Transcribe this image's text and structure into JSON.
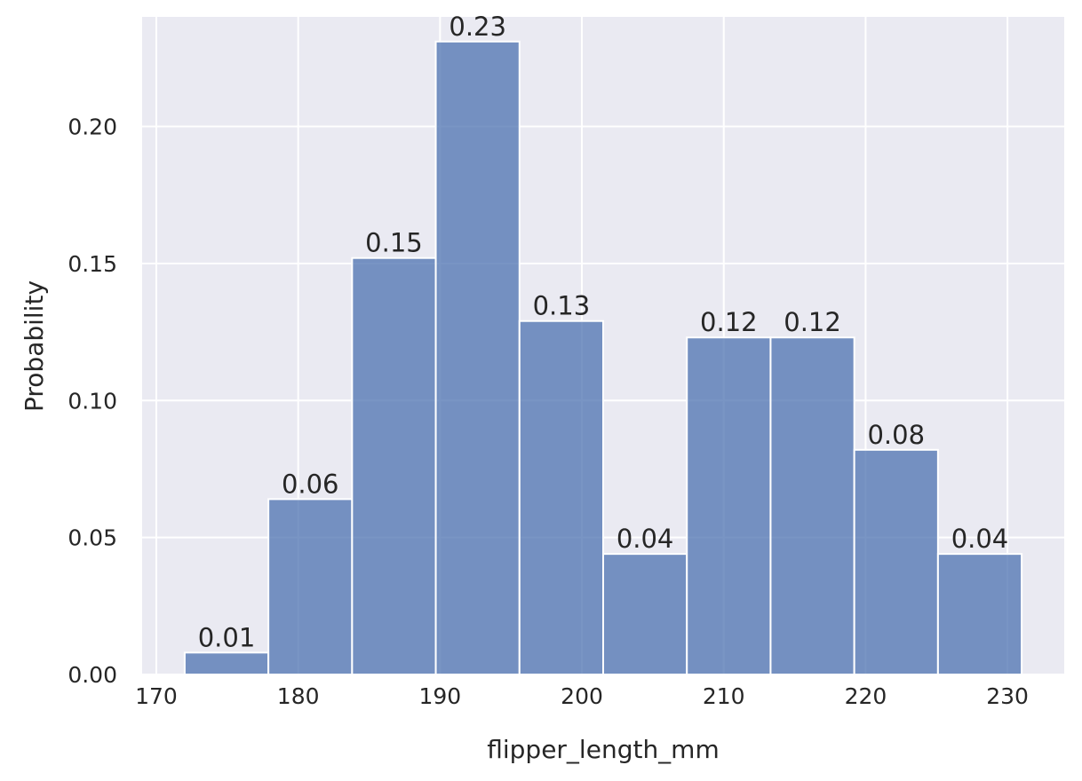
{
  "chart_data": {
    "type": "bar",
    "subtype": "histogram",
    "title": "",
    "xlabel": "flipper_length_mm",
    "ylabel": "Probability",
    "xlim": [
      169,
      234
    ],
    "ylim": [
      0,
      0.24
    ],
    "x_ticks": [
      170,
      180,
      190,
      200,
      210,
      220,
      230
    ],
    "y_ticks": [
      0.0,
      0.05,
      0.1,
      0.15,
      0.2
    ],
    "y_tick_labels": [
      "0.00",
      "0.05",
      "0.10",
      "0.15",
      "0.20"
    ],
    "grid": true,
    "bin_edges": [
      172,
      177.9,
      183.8,
      189.7,
      195.6,
      201.5,
      207.4,
      213.3,
      219.2,
      225.1,
      231
    ],
    "values": [
      0.008,
      0.064,
      0.152,
      0.231,
      0.129,
      0.044,
      0.123,
      0.123,
      0.082,
      0.044
    ],
    "data_labels": [
      "0.01",
      "0.06",
      "0.15",
      "0.23",
      "0.13",
      "0.04",
      "0.12",
      "0.12",
      "0.08",
      "0.04"
    ],
    "colors": {
      "bar": "#4c72b0",
      "background": "#eaeaf2",
      "grid": "#ffffff",
      "text": "#262626"
    }
  }
}
